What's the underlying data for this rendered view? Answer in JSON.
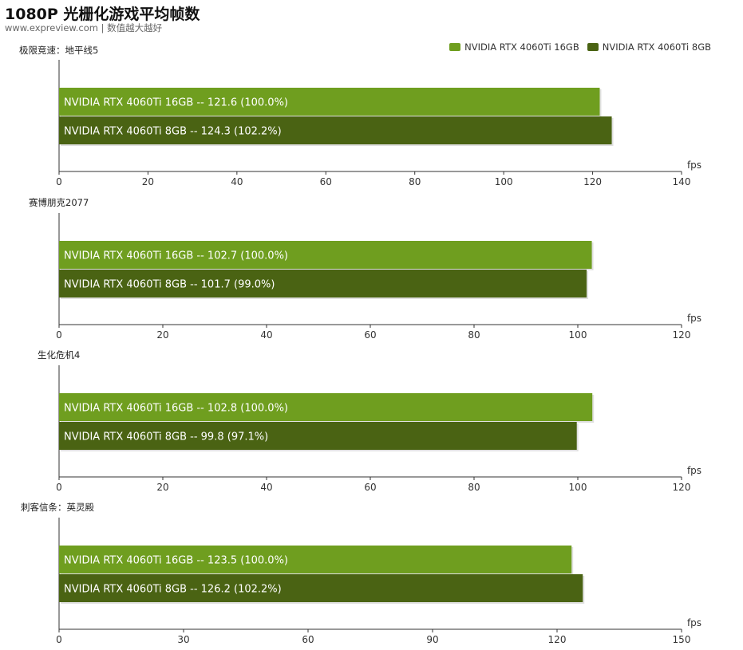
{
  "header": {
    "title": "1080P 光栅化游戏平均帧数",
    "subtitle": "www.expreview.com | 数值越大越好"
  },
  "legend": [
    {
      "name": "NVIDIA RTX 4060Ti 16GB",
      "color": "#6f9e1f"
    },
    {
      "name": "NVIDIA RTX 4060Ti 8GB",
      "color": "#4a6313"
    }
  ],
  "colors": {
    "series_16gb": "#6f9e1f",
    "series_8gb": "#4a6313",
    "axis": "#333333"
  },
  "chart_data": [
    {
      "type": "bar",
      "orientation": "horizontal",
      "title": "极限竞速：地平线5",
      "xlabel": "fps",
      "xlim": [
        0,
        140
      ],
      "ticks": [
        0,
        20,
        40,
        60,
        80,
        100,
        120,
        140
      ],
      "series": [
        {
          "name": "NVIDIA RTX 4060Ti 16GB",
          "value": 121.6,
          "label": "NVIDIA RTX 4060Ti 16GB  --  121.6 (100.0%)"
        },
        {
          "name": "NVIDIA RTX 4060Ti 8GB",
          "value": 124.3,
          "label": "NVIDIA RTX 4060Ti 8GB  --  124.3 (102.2%)"
        }
      ]
    },
    {
      "type": "bar",
      "orientation": "horizontal",
      "title": "赛博朋克2077",
      "xlabel": "fps",
      "xlim": [
        0,
        120
      ],
      "ticks": [
        0,
        20,
        40,
        60,
        80,
        100,
        120
      ],
      "series": [
        {
          "name": "NVIDIA RTX 4060Ti 16GB",
          "value": 102.7,
          "label": "NVIDIA RTX 4060Ti 16GB  --  102.7 (100.0%)"
        },
        {
          "name": "NVIDIA RTX 4060Ti 8GB",
          "value": 101.7,
          "label": "NVIDIA RTX 4060Ti 8GB  --  101.7 (99.0%)"
        }
      ]
    },
    {
      "type": "bar",
      "orientation": "horizontal",
      "title": "生化危机4",
      "xlabel": "fps",
      "xlim": [
        0,
        120
      ],
      "ticks": [
        0,
        20,
        40,
        60,
        80,
        100,
        120
      ],
      "series": [
        {
          "name": "NVIDIA RTX 4060Ti 16GB",
          "value": 102.8,
          "label": "NVIDIA RTX 4060Ti 16GB  --  102.8 (100.0%)"
        },
        {
          "name": "NVIDIA RTX 4060Ti 8GB",
          "value": 99.8,
          "label": "NVIDIA RTX 4060Ti 8GB  --  99.8 (97.1%)"
        }
      ]
    },
    {
      "type": "bar",
      "orientation": "horizontal",
      "title": "刺客信条：英灵殿",
      "xlabel": "fps",
      "xlim": [
        0,
        150
      ],
      "ticks": [
        0,
        30,
        60,
        90,
        120,
        150
      ],
      "series": [
        {
          "name": "NVIDIA RTX 4060Ti 16GB",
          "value": 123.5,
          "label": "NVIDIA RTX 4060Ti 16GB  --  123.5 (100.0%)"
        },
        {
          "name": "NVIDIA RTX 4060Ti 8GB",
          "value": 126.2,
          "label": "NVIDIA RTX 4060Ti 8GB  --  126.2 (102.2%)"
        }
      ]
    }
  ]
}
